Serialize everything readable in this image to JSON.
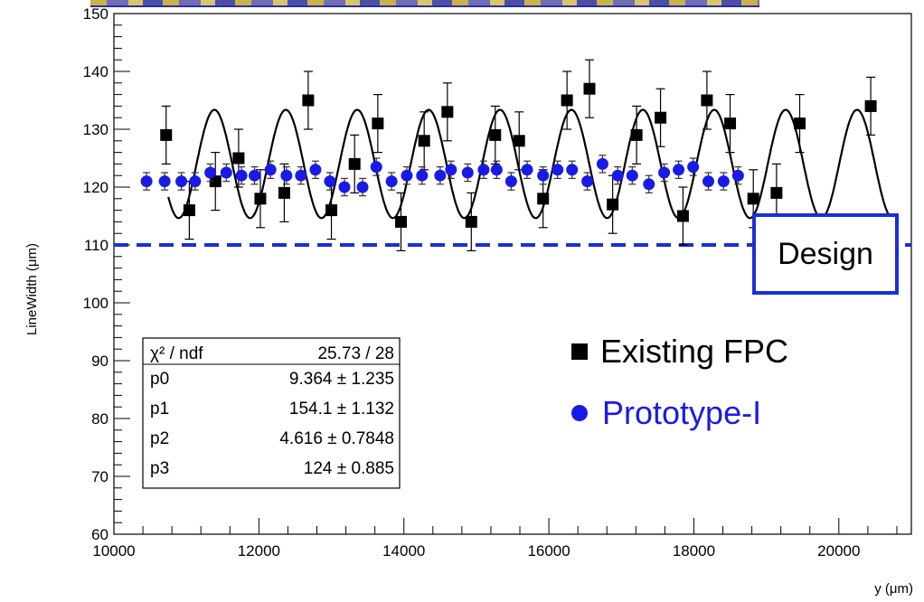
{
  "chart_data": {
    "type": "scatter",
    "title": "",
    "xlabel": "y (μm)",
    "ylabel": "LineWidth (μm)",
    "xlim": [
      10000,
      21000
    ],
    "ylim": [
      60,
      150
    ],
    "x_ticks": [
      10000,
      12000,
      14000,
      16000,
      18000,
      20000
    ],
    "x_tick_labels": [
      "10000",
      "12000",
      "14000",
      "16000",
      "18000",
      "20000"
    ],
    "y_ticks": [
      60,
      70,
      80,
      90,
      100,
      110,
      120,
      130,
      140,
      150
    ],
    "y_tick_labels": [
      "60",
      "70",
      "80",
      "90",
      "100",
      "110",
      "120",
      "130",
      "140",
      "150"
    ],
    "grid": false,
    "legend_placement": "center-right",
    "colors": {
      "existing": "#000000",
      "prototype": "#1a1ae6",
      "design": "#1a2fd8",
      "fit": "#000000"
    },
    "series": [
      {
        "name": "Existing FPC",
        "marker": "square",
        "points": [
          {
            "x": 10720,
            "y": 129,
            "err": 5
          },
          {
            "x": 11040,
            "y": 116,
            "err": 5
          },
          {
            "x": 11400,
            "y": 121,
            "err": 5
          },
          {
            "x": 11720,
            "y": 125,
            "err": 5
          },
          {
            "x": 12020,
            "y": 118,
            "err": 5
          },
          {
            "x": 12350,
            "y": 119,
            "err": 5
          },
          {
            "x": 12680,
            "y": 135,
            "err": 5
          },
          {
            "x": 13000,
            "y": 116,
            "err": 5
          },
          {
            "x": 13320,
            "y": 124,
            "err": 5
          },
          {
            "x": 13640,
            "y": 131,
            "err": 5
          },
          {
            "x": 13960,
            "y": 114,
            "err": 5
          },
          {
            "x": 14280,
            "y": 128,
            "err": 5
          },
          {
            "x": 14600,
            "y": 133,
            "err": 5
          },
          {
            "x": 14930,
            "y": 114,
            "err": 5
          },
          {
            "x": 15260,
            "y": 129,
            "err": 5
          },
          {
            "x": 15590,
            "y": 128,
            "err": 5
          },
          {
            "x": 15920,
            "y": 118,
            "err": 5
          },
          {
            "x": 16250,
            "y": 135,
            "err": 5
          },
          {
            "x": 16560,
            "y": 137,
            "err": 5
          },
          {
            "x": 16880,
            "y": 117,
            "err": 5
          },
          {
            "x": 17210,
            "y": 129,
            "err": 5
          },
          {
            "x": 17540,
            "y": 132,
            "err": 5
          },
          {
            "x": 17850,
            "y": 115,
            "err": 5
          },
          {
            "x": 18180,
            "y": 135,
            "err": 5
          },
          {
            "x": 18500,
            "y": 131,
            "err": 5
          },
          {
            "x": 18820,
            "y": 118,
            "err": 5
          },
          {
            "x": 19140,
            "y": 119,
            "err": 5
          },
          {
            "x": 19460,
            "y": 131,
            "err": 5
          },
          {
            "x": 20440,
            "y": 134,
            "err": 5
          }
        ]
      },
      {
        "name": "Prototype-I",
        "marker": "circle",
        "points": [
          {
            "x": 10450,
            "y": 121,
            "err": 1.5
          },
          {
            "x": 10700,
            "y": 121,
            "err": 1.5
          },
          {
            "x": 10930,
            "y": 121,
            "err": 1.5
          },
          {
            "x": 11120,
            "y": 121,
            "err": 1.5
          },
          {
            "x": 11330,
            "y": 122.5,
            "err": 1.5
          },
          {
            "x": 11550,
            "y": 122.5,
            "err": 1.5
          },
          {
            "x": 11760,
            "y": 122,
            "err": 1.5
          },
          {
            "x": 11940,
            "y": 122,
            "err": 1.5
          },
          {
            "x": 12160,
            "y": 123,
            "err": 1.5
          },
          {
            "x": 12380,
            "y": 122,
            "err": 1.5
          },
          {
            "x": 12580,
            "y": 122,
            "err": 1.5
          },
          {
            "x": 12780,
            "y": 123,
            "err": 1.5
          },
          {
            "x": 12980,
            "y": 121,
            "err": 1.5
          },
          {
            "x": 13180,
            "y": 120,
            "err": 1.5
          },
          {
            "x": 13430,
            "y": 120,
            "err": 1.5
          },
          {
            "x": 13620,
            "y": 123.5,
            "err": 1.5
          },
          {
            "x": 13830,
            "y": 121,
            "err": 1.5
          },
          {
            "x": 14040,
            "y": 122,
            "err": 1.5
          },
          {
            "x": 14250,
            "y": 122,
            "err": 1.5
          },
          {
            "x": 14500,
            "y": 122,
            "err": 1.5
          },
          {
            "x": 14650,
            "y": 123,
            "err": 1.5
          },
          {
            "x": 14880,
            "y": 122.5,
            "err": 1.5
          },
          {
            "x": 15100,
            "y": 123,
            "err": 1.5
          },
          {
            "x": 15280,
            "y": 123,
            "err": 1.5
          },
          {
            "x": 15480,
            "y": 121,
            "err": 1.5
          },
          {
            "x": 15700,
            "y": 123,
            "err": 1.5
          },
          {
            "x": 15920,
            "y": 122,
            "err": 1.5
          },
          {
            "x": 16120,
            "y": 123,
            "err": 1.5
          },
          {
            "x": 16320,
            "y": 123,
            "err": 1.5
          },
          {
            "x": 16530,
            "y": 121,
            "err": 1.5
          },
          {
            "x": 16740,
            "y": 124,
            "err": 1.5
          },
          {
            "x": 16950,
            "y": 122,
            "err": 1.5
          },
          {
            "x": 17150,
            "y": 122,
            "err": 1.5
          },
          {
            "x": 17380,
            "y": 120.5,
            "err": 1.5
          },
          {
            "x": 17590,
            "y": 122.5,
            "err": 1.5
          },
          {
            "x": 17790,
            "y": 123,
            "err": 1.5
          },
          {
            "x": 17990,
            "y": 123.5,
            "err": 1.5
          },
          {
            "x": 18200,
            "y": 121,
            "err": 1.5
          },
          {
            "x": 18410,
            "y": 121,
            "err": 1.5
          },
          {
            "x": 18610,
            "y": 122,
            "err": 1.5
          }
        ]
      }
    ],
    "fit": {
      "name": "fit",
      "model": "p0*sin(2*pi*x/(p1*6.4))+p3",
      "p0": 9.364,
      "period": 985,
      "phase_x": 11140,
      "offset": 124,
      "x_range": [
        10750,
        20700
      ]
    },
    "reference_line": {
      "y": 110,
      "x_range": [
        10000,
        21000
      ]
    },
    "stats_box": {
      "header": {
        "label": "χ² / ndf",
        "value": "25.73 / 28"
      },
      "rows": [
        {
          "label": "p0",
          "value": "9.364 ± 1.235"
        },
        {
          "label": "p1",
          "value": "154.1 ± 1.132"
        },
        {
          "label": "p2",
          "value": "4.616 ± 0.7848"
        },
        {
          "label": "p3",
          "value": "124 ± 0.885"
        }
      ]
    },
    "annotations": {
      "design_label": "Design"
    },
    "legend": [
      {
        "label": "Existing FPC",
        "marker": "square"
      },
      {
        "label": "Prototype-I",
        "marker": "circle"
      }
    ]
  }
}
